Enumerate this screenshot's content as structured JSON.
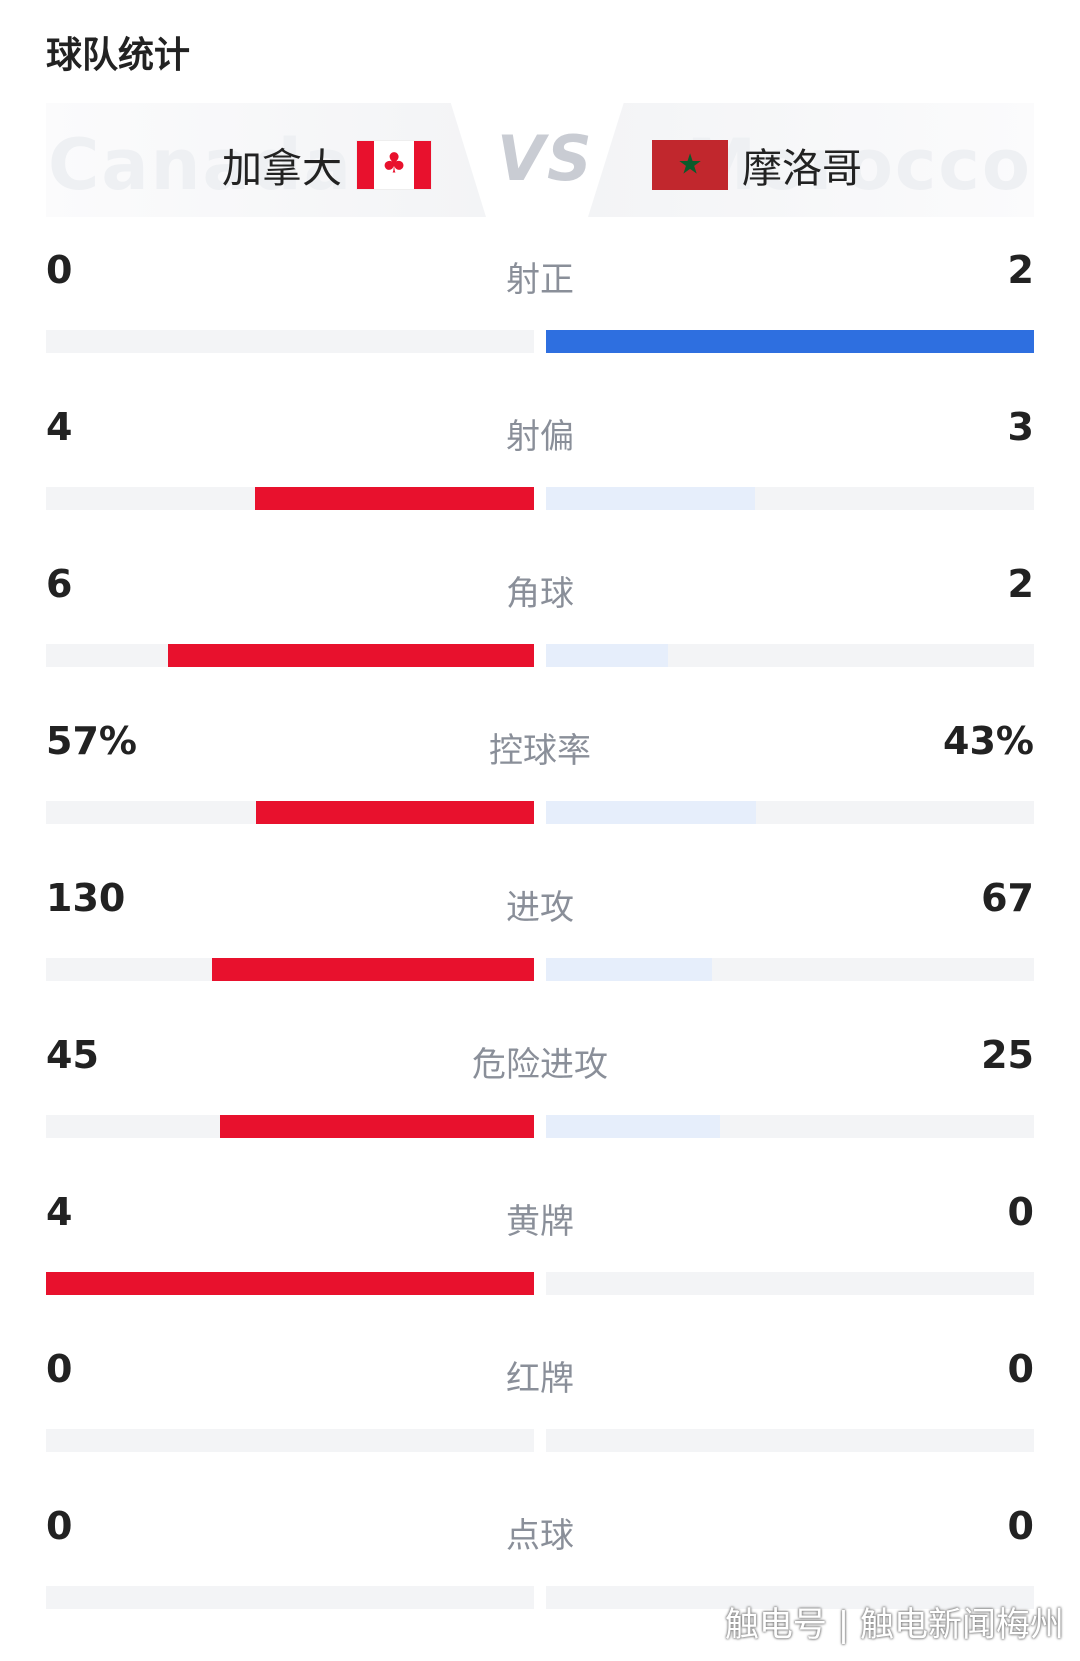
{
  "section_title": "球队统计",
  "header": {
    "home": {
      "name": "加拿大",
      "ghost": "Canada",
      "flag_icon": "canada-flag-icon"
    },
    "away": {
      "name": "摩洛哥",
      "ghost": "Morocco",
      "flag_icon": "morocco-flag-icon"
    },
    "vs": "VS"
  },
  "colors": {
    "home": "#e8112d",
    "away": "#2e6fe0",
    "home_muted": "#fde4e7",
    "away_muted": "#e6eefb",
    "track": "#f3f4f6"
  },
  "stats": [
    {
      "name": "射正",
      "home": "0",
      "away": "2",
      "home_num": 0,
      "away_num": 2
    },
    {
      "name": "射偏",
      "home": "4",
      "away": "3",
      "home_num": 4,
      "away_num": 3
    },
    {
      "name": "角球",
      "home": "6",
      "away": "2",
      "home_num": 6,
      "away_num": 2
    },
    {
      "name": "控球率",
      "home": "57%",
      "away": "43%",
      "home_num": 57,
      "away_num": 43
    },
    {
      "name": "进攻",
      "home": "130",
      "away": "67",
      "home_num": 130,
      "away_num": 67
    },
    {
      "name": "危险进攻",
      "home": "45",
      "away": "25",
      "home_num": 45,
      "away_num": 25
    },
    {
      "name": "黄牌",
      "home": "4",
      "away": "0",
      "home_num": 4,
      "away_num": 0
    },
    {
      "name": "红牌",
      "home": "0",
      "away": "0",
      "home_num": 0,
      "away_num": 0
    },
    {
      "name": "点球",
      "home": "0",
      "away": "0",
      "home_num": 0,
      "away_num": 0
    }
  ],
  "watermark": "触电号 | 触电新闻梅州"
}
